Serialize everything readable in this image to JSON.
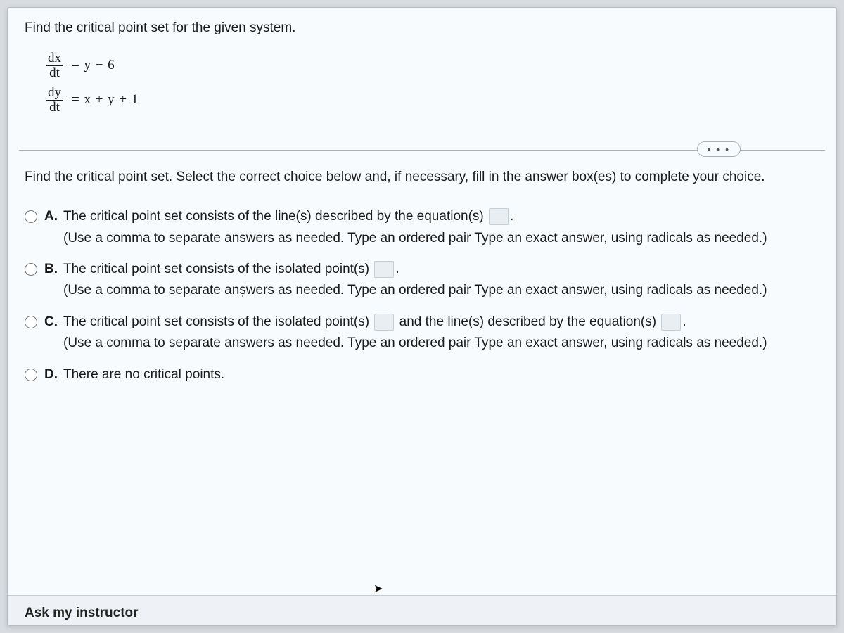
{
  "colors": {
    "page_bg": "#d8dce0",
    "panel_bg": "#f8fbfd",
    "panel_border": "#b8c0c8",
    "text": "#1a1a1a",
    "divider": "#a8b0b8",
    "answer_box_bg": "#e9eef3",
    "answer_box_border": "#c6ced6",
    "footer_bg": "#eef2f6"
  },
  "typography": {
    "body_font": "Arial",
    "math_font": "Times New Roman",
    "body_size_pt": 14,
    "line_height": 1.5
  },
  "question": {
    "prompt": "Find the critical point set for the given system.",
    "equations": [
      {
        "lhs_num": "dx",
        "lhs_den": "dt",
        "rhs": "= y − 6"
      },
      {
        "lhs_num": "dy",
        "lhs_den": "dt",
        "rhs": "= x + y + 1"
      }
    ]
  },
  "ellipsis": "• • •",
  "instructions": "Find the critical point set. Select the correct choice below and, if necessary, fill in the answer box(es) to complete your choice.",
  "choices": [
    {
      "letter": "A.",
      "text_before": "The critical point set consists of the line(s) described by the equation(s) ",
      "text_mid": "",
      "text_after": ".",
      "boxes": 1,
      "hint": "(Use a comma to separate answers as needed. Type an ordered pair Type an exact answer, using radicals as needed.)"
    },
    {
      "letter": "B.",
      "text_before": "The critical point set consists of the isolated point(s) ",
      "text_mid": "",
      "text_after": ".",
      "boxes": 1,
      "hint": "(Use a comma to separate anșwers as needed. Type an ordered pair Type an exact answer, using radicals as needed.)"
    },
    {
      "letter": "C.",
      "text_before": "The critical point set consists of the isolated point(s) ",
      "text_mid": " and the line(s) described by the equation(s) ",
      "text_after": ".",
      "boxes": 2,
      "hint": "(Use a comma to separate answers as needed. Type an ordered pair Type an exact answer, using radicals as needed.)"
    },
    {
      "letter": "D.",
      "text_before": "There are no critical points.",
      "text_mid": "",
      "text_after": "",
      "boxes": 0,
      "hint": ""
    }
  ],
  "footer": {
    "ask": "Ask my instructor"
  }
}
